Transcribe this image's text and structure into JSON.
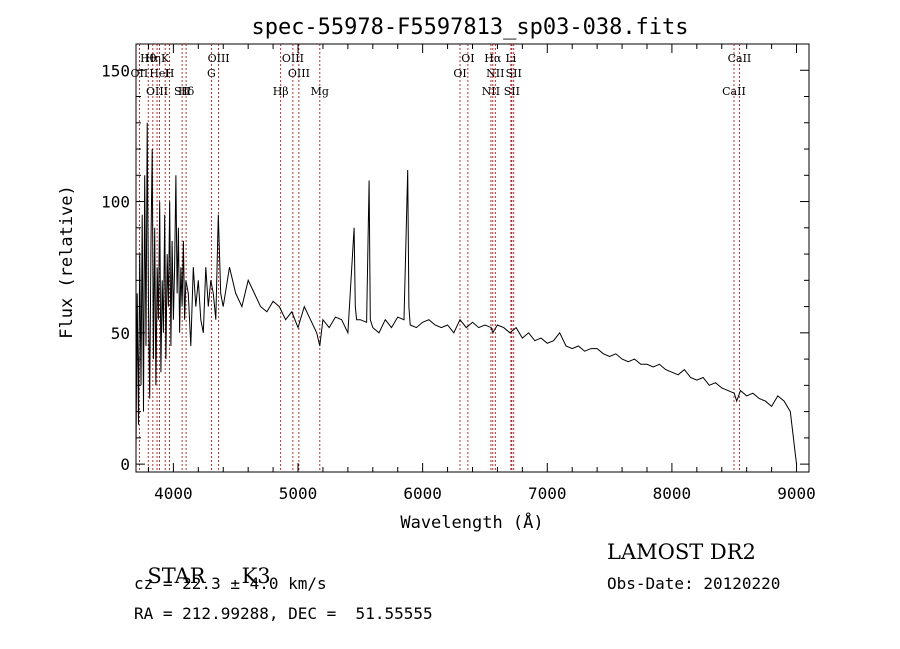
{
  "chart_data": {
    "type": "line",
    "title": "spec-55978-F5597813_sp03-038.fits",
    "xlabel": "Wavelength (Å)",
    "ylabel": "Flux (relative)",
    "xlim": [
      3700,
      9100
    ],
    "ylim": [
      -3,
      160
    ],
    "x_ticks": [
      4000,
      5000,
      6000,
      7000,
      8000,
      9000
    ],
    "y_ticks": [
      0,
      50,
      100,
      150
    ],
    "grid": false,
    "legend": "none",
    "series": [
      {
        "x": [
          3700,
          3710,
          3720,
          3730,
          3740,
          3750,
          3760,
          3770,
          3780,
          3790,
          3800,
          3810,
          3820,
          3830,
          3840,
          3850,
          3860,
          3870,
          3880,
          3890,
          3900,
          3910,
          3920,
          3930,
          3940,
          3950,
          3960,
          3970,
          3980,
          3990,
          4000,
          4010,
          4020,
          4030,
          4040,
          4050,
          4060,
          4070,
          4080,
          4090,
          4100,
          4120,
          4140,
          4160,
          4180,
          4200,
          4220,
          4240,
          4260,
          4280,
          4300,
          4320,
          4340,
          4360,
          4380,
          4400,
          4450,
          4500,
          4550,
          4600,
          4650,
          4700,
          4750,
          4800,
          4850,
          4900,
          4950,
          5000,
          5050,
          5100,
          5150,
          5175,
          5200,
          5250,
          5300,
          5350,
          5400,
          5450,
          5460,
          5470,
          5500,
          5550,
          5570,
          5580,
          5600,
          5650,
          5700,
          5750,
          5800,
          5850,
          5880,
          5890,
          5900,
          5950,
          6000,
          6050,
          6100,
          6150,
          6200,
          6250,
          6300,
          6350,
          6400,
          6450,
          6500,
          6550,
          6563,
          6600,
          6650,
          6700,
          6750,
          6800,
          6850,
          6900,
          6950,
          7000,
          7050,
          7100,
          7150,
          7200,
          7250,
          7300,
          7350,
          7400,
          7450,
          7500,
          7550,
          7600,
          7650,
          7700,
          7750,
          7800,
          7850,
          7900,
          7950,
          8000,
          8050,
          8100,
          8150,
          8200,
          8250,
          8300,
          8350,
          8400,
          8450,
          8500,
          8520,
          8550,
          8600,
          8650,
          8700,
          8750,
          8800,
          8850,
          8900,
          8950,
          9000
        ],
        "y": [
          5,
          65,
          15,
          80,
          30,
          95,
          20,
          110,
          45,
          130,
          60,
          25,
          85,
          120,
          40,
          90,
          30,
          75,
          55,
          100,
          35,
          70,
          50,
          95,
          40,
          80,
          60,
          100,
          45,
          85,
          55,
          75,
          110,
          65,
          90,
          50,
          75,
          60,
          85,
          55,
          70,
          65,
          45,
          75,
          60,
          70,
          55,
          50,
          75,
          60,
          70,
          65,
          55,
          95,
          65,
          60,
          75,
          65,
          60,
          70,
          65,
          60,
          58,
          62,
          60,
          55,
          58,
          52,
          60,
          55,
          50,
          45,
          55,
          52,
          56,
          55,
          50,
          90,
          60,
          55,
          55,
          54,
          108,
          55,
          52,
          50,
          55,
          52,
          56,
          55,
          112,
          60,
          53,
          52,
          54,
          55,
          53,
          52,
          53,
          50,
          55,
          52,
          54,
          52,
          53,
          52,
          50,
          53,
          52,
          50,
          52,
          48,
          50,
          47,
          48,
          46,
          47,
          50,
          45,
          44,
          45,
          43,
          44,
          44,
          42,
          41,
          42,
          40,
          39,
          40,
          38,
          38,
          37,
          38,
          36,
          35,
          34,
          36,
          33,
          32,
          33,
          30,
          31,
          29,
          28,
          27,
          24,
          28,
          26,
          27,
          25,
          24,
          22,
          26,
          24,
          20,
          0
        ]
      }
    ],
    "line_markers": [
      {
        "label": "Hθ",
        "x": 3798
      },
      {
        "label": "OII",
        "x": 3727
      },
      {
        "label": "OIII",
        "x": 3869
      },
      {
        "label": "K",
        "x": 3934
      },
      {
        "label": "HeI",
        "x": 3889
      },
      {
        "label": "SII",
        "x": 4070
      },
      {
        "label": "Hη",
        "x": 3835
      },
      {
        "label": "H",
        "x": 3969
      },
      {
        "label": "Hδ",
        "x": 4102
      },
      {
        "label": "OIII",
        "x": 4363
      },
      {
        "label": "G",
        "x": 4305
      },
      {
        "label": "Hβ",
        "x": 4861
      },
      {
        "label": "OIII",
        "x": 4959
      },
      {
        "label": "OIII",
        "x": 5007
      },
      {
        "label": "Mg",
        "x": 5175
      },
      {
        "label": "OI",
        "x": 6363
      },
      {
        "label": "OI",
        "x": 6300
      },
      {
        "label": "NII",
        "x": 6548
      },
      {
        "label": "Li",
        "x": 6708
      },
      {
        "label": "NII",
        "x": 6583
      },
      {
        "label": "SII",
        "x": 6716
      },
      {
        "label": "Hα",
        "x": 6563
      },
      {
        "label": "SII",
        "x": 6731
      },
      {
        "label": "CaII",
        "x": 8498
      },
      {
        "label": "CaII",
        "x": 8542
      }
    ]
  },
  "footer": {
    "object_class": "STAR",
    "subclass": "K3",
    "redshift": "cz = 22.3 ± 4.0 km/s",
    "coords": "RA = 212.99288, DEC =  51.55555",
    "survey": "LAMOST DR2",
    "obs_date": "Obs-Date: 20120220"
  }
}
